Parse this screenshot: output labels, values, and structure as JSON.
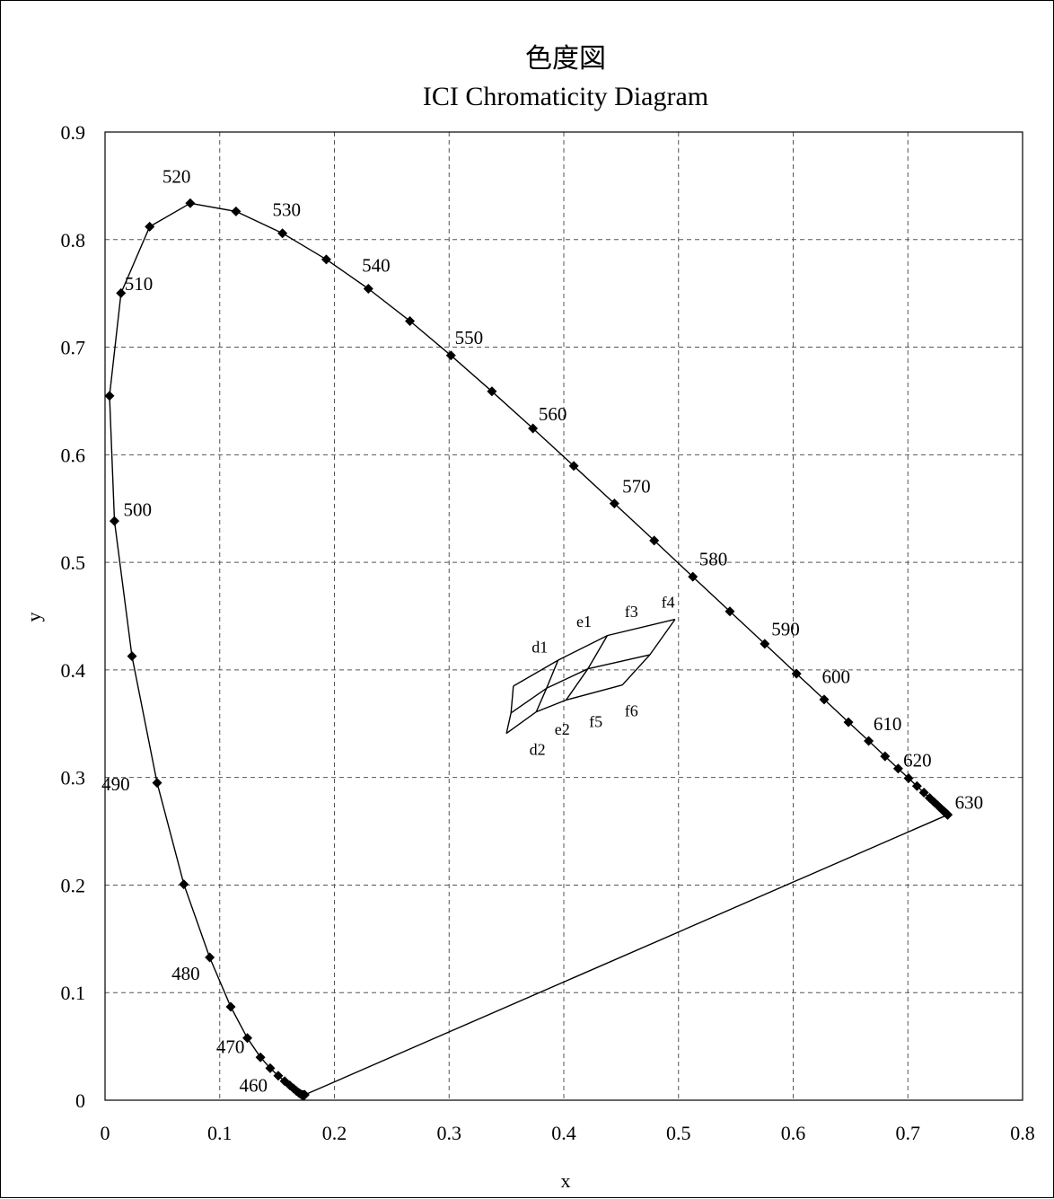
{
  "chart_data": {
    "type": "scatter",
    "title": "色度図",
    "subtitle": "ICI Chromaticity Diagram",
    "xlabel": "x",
    "ylabel": "y",
    "xlim": [
      0,
      0.8
    ],
    "ylim": [
      0,
      0.9
    ],
    "x_ticks": [
      "0",
      "0.1",
      "0.2",
      "0.3",
      "0.4",
      "0.5",
      "0.6",
      "0.7",
      "0.8"
    ],
    "y_ticks": [
      "0",
      "0.1",
      "0.2",
      "0.3",
      "0.4",
      "0.5",
      "0.6",
      "0.7",
      "0.8",
      "0.9"
    ],
    "grid": true,
    "series": [
      {
        "points": [
          [
            0.1741,
            0.005
          ],
          [
            0.1738,
            0.0049
          ],
          [
            0.1736,
            0.0049
          ],
          [
            0.1733,
            0.0048
          ],
          [
            0.173,
            0.0048
          ],
          [
            0.1726,
            0.0048
          ],
          [
            0.1721,
            0.0048
          ],
          [
            0.1714,
            0.0051
          ],
          [
            0.1703,
            0.0058
          ],
          [
            0.1689,
            0.0069
          ],
          [
            0.1669,
            0.0086
          ],
          [
            0.1644,
            0.0109
          ],
          [
            0.1611,
            0.0138
          ],
          [
            0.1566,
            0.0177
          ],
          [
            0.151,
            0.0227
          ],
          [
            0.144,
            0.0297
          ],
          [
            0.1355,
            0.0399
          ],
          [
            0.1241,
            0.0578
          ],
          [
            0.1096,
            0.0868
          ],
          [
            0.0913,
            0.1327
          ],
          [
            0.0687,
            0.2007
          ],
          [
            0.0454,
            0.295
          ],
          [
            0.0235,
            0.4127
          ],
          [
            0.0082,
            0.5384
          ],
          [
            0.0039,
            0.6548
          ],
          [
            0.0139,
            0.7502
          ],
          [
            0.0389,
            0.812
          ],
          [
            0.0743,
            0.8338
          ],
          [
            0.1142,
            0.8262
          ],
          [
            0.1547,
            0.8059
          ],
          [
            0.1929,
            0.7816
          ],
          [
            0.2296,
            0.7543
          ],
          [
            0.2658,
            0.7243
          ],
          [
            0.3016,
            0.6923
          ],
          [
            0.3373,
            0.6589
          ],
          [
            0.3731,
            0.6245
          ],
          [
            0.4087,
            0.5896
          ],
          [
            0.4441,
            0.5547
          ],
          [
            0.4788,
            0.5202
          ],
          [
            0.5125,
            0.4866
          ],
          [
            0.5448,
            0.4544
          ],
          [
            0.5752,
            0.4242
          ],
          [
            0.6029,
            0.3965
          ],
          [
            0.627,
            0.3725
          ],
          [
            0.6482,
            0.3514
          ],
          [
            0.6658,
            0.334
          ],
          [
            0.6801,
            0.3197
          ],
          [
            0.6915,
            0.3083
          ],
          [
            0.7006,
            0.2993
          ],
          [
            0.7079,
            0.292
          ],
          [
            0.714,
            0.2859
          ],
          [
            0.719,
            0.2809
          ],
          [
            0.723,
            0.277
          ],
          [
            0.726,
            0.274
          ],
          [
            0.7283,
            0.2717
          ],
          [
            0.73,
            0.27
          ],
          [
            0.7311,
            0.2689
          ],
          [
            0.732,
            0.268
          ],
          [
            0.7327,
            0.2673
          ],
          [
            0.7334,
            0.2666
          ],
          [
            0.734,
            0.266
          ],
          [
            0.7344,
            0.2656
          ],
          [
            0.7346,
            0.2654
          ],
          [
            0.7347,
            0.2653
          ]
        ]
      }
    ],
    "wavelength_labels": [
      {
        "text": "460",
        "x": 0.117,
        "y": 0.008
      },
      {
        "text": "470",
        "x": 0.097,
        "y": 0.044
      },
      {
        "text": "480",
        "x": 0.058,
        "y": 0.112
      },
      {
        "text": "490",
        "x": -0.003,
        "y": 0.288
      },
      {
        "text": "500",
        "x": 0.016,
        "y": 0.543
      },
      {
        "text": "510",
        "x": 0.017,
        "y": 0.753
      },
      {
        "text": "520",
        "x": 0.05,
        "y": 0.853
      },
      {
        "text": "530",
        "x": 0.146,
        "y": 0.822
      },
      {
        "text": "540",
        "x": 0.224,
        "y": 0.77
      },
      {
        "text": "550",
        "x": 0.305,
        "y": 0.703
      },
      {
        "text": "560",
        "x": 0.378,
        "y": 0.632
      },
      {
        "text": "570",
        "x": 0.451,
        "y": 0.565
      },
      {
        "text": "580",
        "x": 0.518,
        "y": 0.497
      },
      {
        "text": "590",
        "x": 0.581,
        "y": 0.432
      },
      {
        "text": "600",
        "x": 0.625,
        "y": 0.388
      },
      {
        "text": "610",
        "x": 0.67,
        "y": 0.344
      },
      {
        "text": "620",
        "x": 0.696,
        "y": 0.31
      },
      {
        "text": "630",
        "x": 0.741,
        "y": 0.271
      }
    ],
    "inner_grid": {
      "rows": [
        [
          [
            0.356,
            0.385
          ],
          [
            0.395,
            0.409
          ],
          [
            0.438,
            0.432
          ],
          [
            0.497,
            0.447
          ]
        ],
        [
          [
            0.354,
            0.36
          ],
          [
            0.385,
            0.383
          ],
          [
            0.421,
            0.401
          ],
          [
            0.475,
            0.414
          ]
        ],
        [
          [
            0.35,
            0.341
          ],
          [
            0.376,
            0.361
          ],
          [
            0.402,
            0.372
          ],
          [
            0.451,
            0.386
          ]
        ]
      ],
      "labels": [
        {
          "text": "d1",
          "x": 0.372,
          "y": 0.416
        },
        {
          "text": "e1",
          "x": 0.411,
          "y": 0.44
        },
        {
          "text": "f3",
          "x": 0.453,
          "y": 0.449
        },
        {
          "text": "f4",
          "x": 0.485,
          "y": 0.458
        },
        {
          "text": "d2",
          "x": 0.37,
          "y": 0.321
        },
        {
          "text": "e2",
          "x": 0.392,
          "y": 0.34
        },
        {
          "text": "f5",
          "x": 0.422,
          "y": 0.347
        },
        {
          "text": "f6",
          "x": 0.453,
          "y": 0.357
        }
      ]
    }
  }
}
